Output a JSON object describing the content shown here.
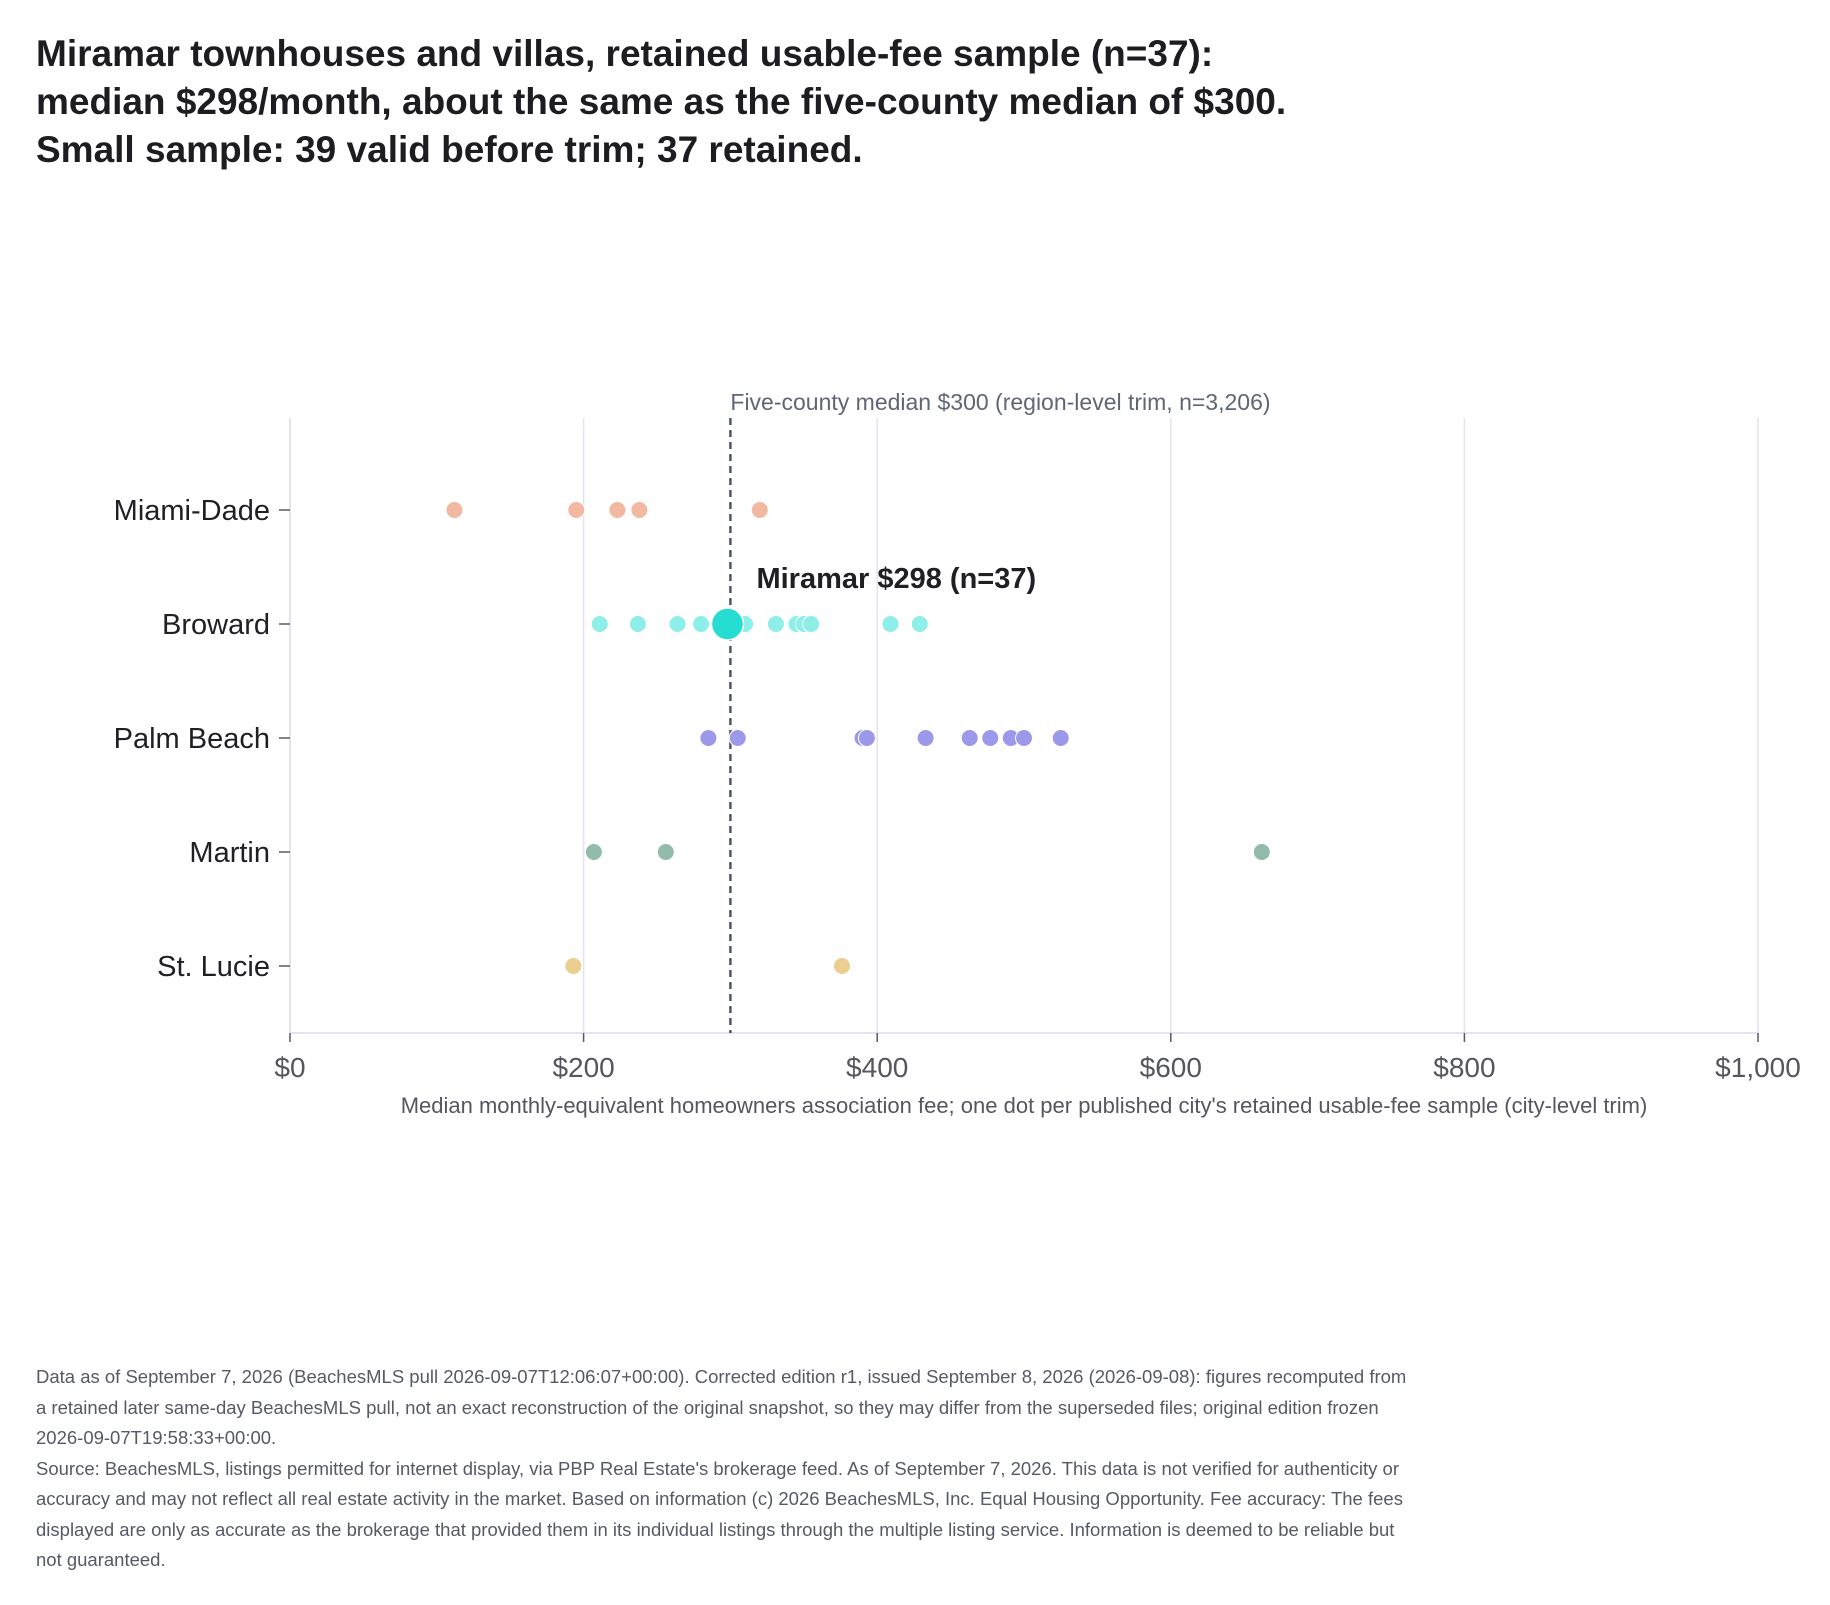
{
  "title": "Miramar townhouses and villas, retained usable-fee sample (n=37): median $298/month, about the same as the five-county median of $300. Small sample: 39 valid before trim; 37 retained.",
  "chart_data": {
    "type": "scatter",
    "xlabel": "Median monthly-equivalent homeowners association fee; one dot per published city's retained usable-fee sample (city-level trim)",
    "xlim": [
      0,
      1000
    ],
    "x_ticks": [
      0,
      200,
      400,
      600,
      800,
      1000
    ],
    "x_tick_labels": [
      "$0",
      "$200",
      "$400",
      "$600",
      "$800",
      "$1,000"
    ],
    "grid": "vertical",
    "categories": [
      "Miami-Dade",
      "Broward",
      "Palm Beach",
      "Martin",
      "St. Lucie"
    ],
    "series": [
      {
        "color": "#f2b8a2",
        "values": [
          112,
          195,
          223,
          238,
          320
        ]
      },
      {
        "color": "#8eeee8",
        "values": [
          211,
          237,
          264,
          280,
          298,
          310,
          331,
          345,
          350,
          355,
          409,
          429
        ]
      },
      {
        "color": "#9d99ea",
        "values": [
          285,
          305,
          390,
          393,
          433,
          463,
          477,
          491,
          500,
          525
        ]
      },
      {
        "color": "#93bba9",
        "values": [
          207,
          256,
          662
        ]
      },
      {
        "color": "#ebcf8e",
        "values": [
          193,
          376
        ]
      }
    ],
    "reference_line": {
      "value": 300,
      "label": "Five-county median $300 (region-level trim, n=3,206)",
      "color": "#4f586b"
    },
    "highlight": {
      "category": "Broward",
      "value": 298,
      "label": "Miramar $298 (n=37)",
      "color": "#25ded1"
    }
  },
  "notes": [
    "Data as of September 7, 2026 (BeachesMLS pull 2026-09-07T12:06:07+00:00). Corrected edition r1, issued September 8, 2026 (2026-09-08): figures recomputed from a retained later same-day BeachesMLS pull, not an exact reconstruction of the original snapshot, so they may differ from the superseded files; original edition frozen 2026-09-07T19:58:33+00:00.",
    "Source: BeachesMLS, listings permitted for internet display, via PBP Real Estate's brokerage feed. As of September 7, 2026. This data is not verified for authenticity or accuracy and may not reflect all real estate activity in the market. Based on information (c) 2026 BeachesMLS, Inc. Equal Housing Opportunity. Fee accuracy: The fees displayed are only as accurate as the brokerage that provided them in its individual listings through the multiple listing service. Information is deemed to be reliable but not guaranteed."
  ]
}
